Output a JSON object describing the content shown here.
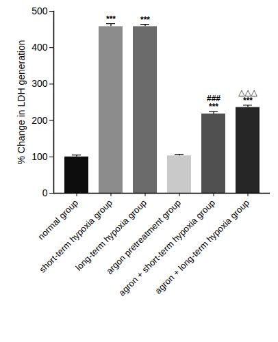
{
  "chart_data": {
    "type": "bar",
    "y_label": "% Change in LDH generation",
    "categories": [
      "normal group",
      "short-term hypoxia group",
      "long-term hypoxia group",
      "argon pretreatment group",
      "agron + short-term hypoxia group",
      "agron + long-term hypoxia group"
    ],
    "values": [
      100,
      458,
      458,
      103,
      218,
      236
    ],
    "errors": [
      5,
      8,
      6,
      4,
      6,
      6
    ],
    "significance": [
      [],
      [
        "***"
      ],
      [
        "***"
      ],
      [],
      [
        "###",
        "***"
      ],
      [
        "△△△",
        "***"
      ]
    ],
    "colors": [
      "#0d0d0d",
      "#8c8c8c",
      "#6b6b6b",
      "#c9c9c9",
      "#505050",
      "#262626"
    ],
    "ylim": [
      0,
      500
    ],
    "yticks": [
      0,
      100,
      200,
      300,
      400,
      500
    ],
    "grid": false
  }
}
